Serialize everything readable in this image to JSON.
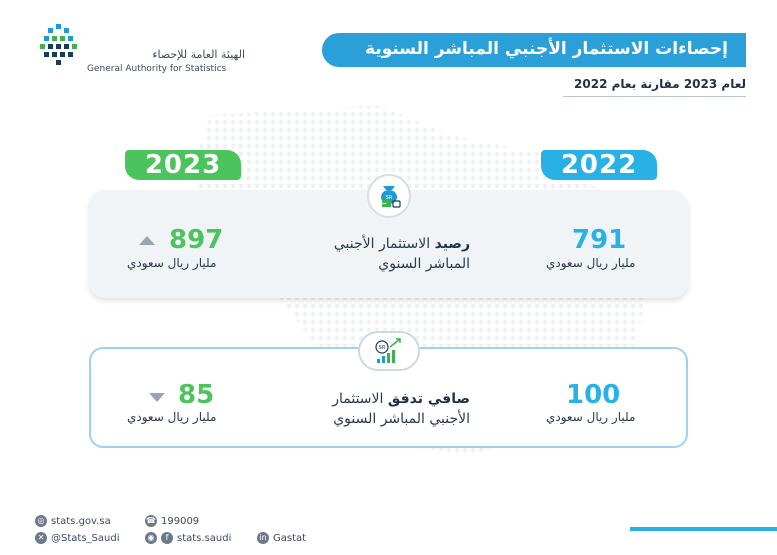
{
  "org": {
    "name_ar": "الهيئة العامة للإحصاء",
    "name_en": "General Authority for Statistics"
  },
  "title": "إحصاءات الاستثمار الأجنبي المباشر السنوية",
  "subtitle": "لعام 2023 مقارنة بعام 2022",
  "years": {
    "current": "2023",
    "previous": "2022"
  },
  "stock": {
    "label_bold": "رصيد",
    "label_rest_1": "الاستثمار الأجنبي",
    "label_rest_2": "المباشر السنوي",
    "value_2023": "897",
    "value_2022": "791",
    "unit": "مليار ريال سعودي",
    "trend_2023": "up",
    "icon": "money-bag-icon"
  },
  "flow": {
    "label_bold": "صافي تدفق",
    "label_rest_1": "الاستثمار",
    "label_rest_2": "الأجنبي المباشر السنوي",
    "value_2023": "85",
    "value_2022": "100",
    "unit": "مليار ريال سعودي",
    "trend_2023": "down",
    "icon": "growth-chart-icon"
  },
  "colors": {
    "green": "#4cc45e",
    "blue": "#29b1e6",
    "banner": "#2a9fd8"
  },
  "footer": {
    "website": "stats.gov.sa",
    "phone": "199009",
    "twitter": "@Stats_Saudi",
    "social": "stats.saudi",
    "linkedin": "Gastat"
  }
}
